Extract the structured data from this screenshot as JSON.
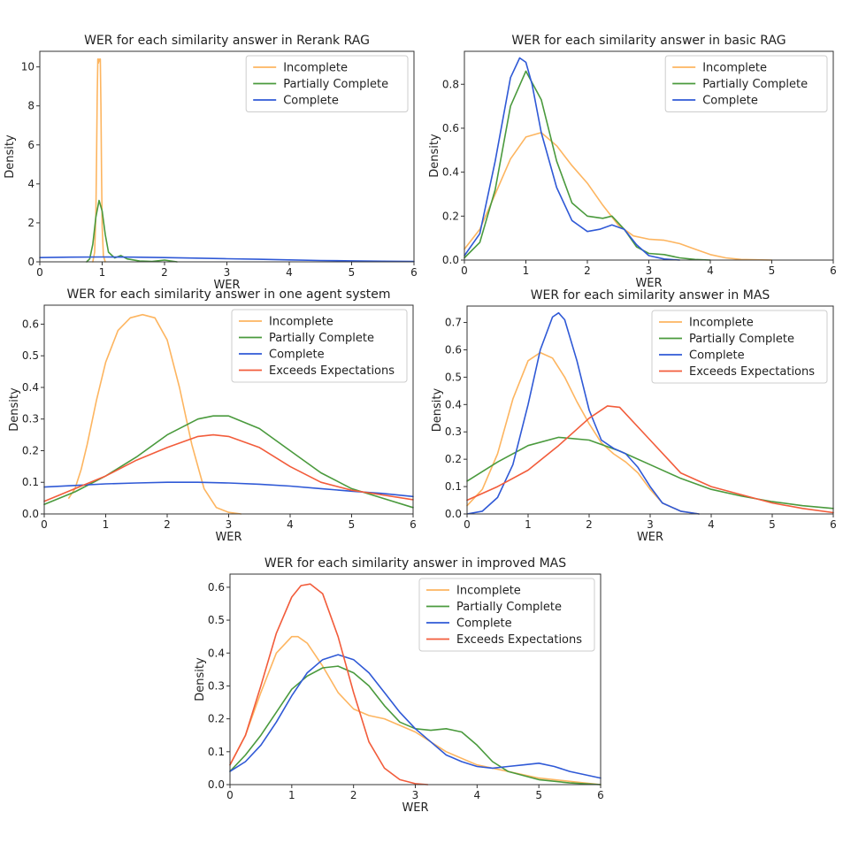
{
  "colors": {
    "Incomplete": "#fdb560",
    "Partially Complete": "#4a9a3d",
    "Complete": "#2f59d6",
    "Exceeds Expectations": "#f25c3b"
  },
  "chart_data": [
    {
      "type": "line",
      "title": "WER for each similarity answer in Rerank RAG",
      "xlabel": "WER",
      "ylabel": "Density",
      "xlim": [
        0,
        6
      ],
      "ylim": [
        0,
        10.8
      ],
      "xticks": [
        0,
        1,
        2,
        3,
        4,
        5,
        6
      ],
      "yticks": [
        0,
        2,
        4,
        6,
        8,
        10
      ],
      "legend": "top-right",
      "series": [
        {
          "name": "Incomplete",
          "x": [
            0.85,
            0.88,
            0.9,
            0.91,
            0.92,
            0.93,
            0.94,
            0.95,
            0.96,
            0.97,
            0.98,
            0.99,
            1.0,
            1.02,
            1.05
          ],
          "y": [
            0,
            0.5,
            2.5,
            5.5,
            8.5,
            10.4,
            10.2,
            10.4,
            10.3,
            10.4,
            8.0,
            4.5,
            1.8,
            0.3,
            0
          ]
        },
        {
          "name": "Partially Complete",
          "x": [
            0.75,
            0.8,
            0.85,
            0.9,
            0.95,
            1.0,
            1.05,
            1.1,
            1.2,
            1.3,
            1.4,
            1.6,
            1.8,
            2.0,
            2.2
          ],
          "y": [
            0,
            0.15,
            0.9,
            2.3,
            3.15,
            2.6,
            1.4,
            0.5,
            0.2,
            0.32,
            0.15,
            0.04,
            0.02,
            0.09,
            0
          ]
        },
        {
          "name": "Complete",
          "x": [
            0,
            0.5,
            1,
            1.5,
            2,
            2.5,
            3,
            3.5,
            4,
            4.5,
            5,
            5.5,
            6
          ],
          "y": [
            0.22,
            0.24,
            0.25,
            0.24,
            0.22,
            0.19,
            0.16,
            0.13,
            0.1,
            0.07,
            0.05,
            0.03,
            0.02
          ]
        }
      ]
    },
    {
      "type": "line",
      "title": "WER for each similarity answer in basic RAG",
      "xlabel": "WER",
      "ylabel": "Density",
      "xlim": [
        0,
        6
      ],
      "ylim": [
        0,
        0.95
      ],
      "xticks": [
        0,
        1,
        2,
        3,
        4,
        5,
        6
      ],
      "yticks": [
        0.0,
        0.2,
        0.4,
        0.6,
        0.8
      ],
      "legend": "top-right",
      "series": [
        {
          "name": "Incomplete",
          "x": [
            0,
            0.25,
            0.5,
            0.75,
            1.0,
            1.25,
            1.5,
            1.75,
            2.0,
            2.25,
            2.5,
            2.75,
            3.0,
            3.25,
            3.5,
            3.75,
            4.0,
            4.25,
            4.5,
            5.0
          ],
          "y": [
            0.05,
            0.14,
            0.3,
            0.46,
            0.56,
            0.58,
            0.52,
            0.43,
            0.35,
            0.25,
            0.16,
            0.11,
            0.095,
            0.09,
            0.075,
            0.05,
            0.025,
            0.01,
            0.003,
            0
          ]
        },
        {
          "name": "Partially Complete",
          "x": [
            0,
            0.25,
            0.5,
            0.75,
            1.0,
            1.25,
            1.5,
            1.75,
            2.0,
            2.25,
            2.4,
            2.6,
            2.8,
            3.0,
            3.25,
            3.5,
            3.75,
            4.0
          ],
          "y": [
            0.01,
            0.08,
            0.32,
            0.7,
            0.86,
            0.73,
            0.45,
            0.26,
            0.2,
            0.19,
            0.2,
            0.14,
            0.06,
            0.03,
            0.025,
            0.01,
            0.003,
            0
          ]
        },
        {
          "name": "Complete",
          "x": [
            0,
            0.25,
            0.5,
            0.75,
            0.9,
            1.0,
            1.1,
            1.25,
            1.5,
            1.75,
            2.0,
            2.2,
            2.4,
            2.6,
            2.8,
            3.0,
            3.25,
            3.5
          ],
          "y": [
            0.02,
            0.12,
            0.45,
            0.83,
            0.92,
            0.9,
            0.8,
            0.58,
            0.33,
            0.18,
            0.13,
            0.14,
            0.16,
            0.14,
            0.07,
            0.02,
            0.005,
            0
          ]
        }
      ]
    },
    {
      "type": "line",
      "title": "WER for each similarity answer in one agent system",
      "xlabel": "WER",
      "ylabel": "Density",
      "xlim": [
        0,
        6
      ],
      "ylim": [
        0,
        0.66
      ],
      "xticks": [
        0,
        1,
        2,
        3,
        4,
        5,
        6
      ],
      "yticks": [
        0.0,
        0.1,
        0.2,
        0.3,
        0.4,
        0.5,
        0.6
      ],
      "legend": "top-right",
      "series": [
        {
          "name": "Incomplete",
          "x": [
            0.4,
            0.5,
            0.6,
            0.7,
            0.85,
            1.0,
            1.2,
            1.4,
            1.6,
            1.8,
            2.0,
            2.2,
            2.4,
            2.6,
            2.8,
            3.0,
            3.2
          ],
          "y": [
            0.05,
            0.08,
            0.14,
            0.22,
            0.36,
            0.48,
            0.58,
            0.62,
            0.63,
            0.62,
            0.55,
            0.4,
            0.22,
            0.08,
            0.02,
            0.005,
            0
          ]
        },
        {
          "name": "Partially Complete",
          "x": [
            0,
            0.5,
            1.0,
            1.5,
            2.0,
            2.5,
            2.75,
            3.0,
            3.5,
            4.0,
            4.5,
            5.0,
            5.5,
            6.0
          ],
          "y": [
            0.03,
            0.07,
            0.12,
            0.18,
            0.25,
            0.3,
            0.31,
            0.31,
            0.27,
            0.2,
            0.13,
            0.08,
            0.05,
            0.02
          ]
        },
        {
          "name": "Complete",
          "x": [
            0,
            0.5,
            1.0,
            1.5,
            2.0,
            2.5,
            3.0,
            3.5,
            4.0,
            4.5,
            5.0,
            5.5,
            6.0
          ],
          "y": [
            0.085,
            0.09,
            0.095,
            0.098,
            0.1,
            0.1,
            0.098,
            0.094,
            0.088,
            0.08,
            0.072,
            0.065,
            0.055
          ]
        },
        {
          "name": "Exceeds Expectations",
          "x": [
            0,
            0.5,
            1.0,
            1.5,
            2.0,
            2.5,
            2.75,
            3.0,
            3.5,
            4.0,
            4.5,
            5.0,
            5.5,
            6.0
          ],
          "y": [
            0.04,
            0.08,
            0.12,
            0.17,
            0.21,
            0.245,
            0.25,
            0.245,
            0.21,
            0.15,
            0.1,
            0.075,
            0.06,
            0.045
          ]
        }
      ]
    },
    {
      "type": "line",
      "title": "WER for each similarity answer in MAS",
      "xlabel": "WER",
      "ylabel": "Density",
      "xlim": [
        0,
        6
      ],
      "ylim": [
        0,
        0.76
      ],
      "xticks": [
        0,
        1,
        2,
        3,
        4,
        5,
        6
      ],
      "yticks": [
        0.0,
        0.1,
        0.2,
        0.3,
        0.4,
        0.5,
        0.6,
        0.7
      ],
      "legend": "top-right",
      "series": [
        {
          "name": "Incomplete",
          "x": [
            0,
            0.25,
            0.5,
            0.75,
            1.0,
            1.2,
            1.4,
            1.6,
            1.8,
            2.0,
            2.2,
            2.4,
            2.6,
            2.8,
            3.0,
            3.2,
            3.5,
            3.8
          ],
          "y": [
            0.03,
            0.09,
            0.22,
            0.42,
            0.56,
            0.59,
            0.57,
            0.5,
            0.41,
            0.33,
            0.26,
            0.22,
            0.19,
            0.15,
            0.09,
            0.04,
            0.01,
            0
          ]
        },
        {
          "name": "Partially Complete",
          "x": [
            0,
            0.5,
            1.0,
            1.5,
            2.0,
            2.5,
            3.0,
            3.5,
            4.0,
            4.5,
            5.0,
            5.5,
            6.0
          ],
          "y": [
            0.12,
            0.19,
            0.25,
            0.28,
            0.27,
            0.23,
            0.18,
            0.13,
            0.09,
            0.065,
            0.045,
            0.03,
            0.02
          ]
        },
        {
          "name": "Complete",
          "x": [
            0,
            0.25,
            0.5,
            0.75,
            1.0,
            1.2,
            1.4,
            1.5,
            1.6,
            1.8,
            2.0,
            2.2,
            2.4,
            2.6,
            2.8,
            3.0,
            3.2,
            3.5,
            3.8
          ],
          "y": [
            0,
            0.01,
            0.06,
            0.18,
            0.4,
            0.6,
            0.72,
            0.735,
            0.71,
            0.56,
            0.38,
            0.27,
            0.24,
            0.22,
            0.17,
            0.1,
            0.04,
            0.01,
            0
          ]
        },
        {
          "name": "Exceeds Expectations",
          "x": [
            0,
            0.5,
            1.0,
            1.5,
            2.0,
            2.3,
            2.5,
            3.0,
            3.5,
            4.0,
            4.5,
            5.0,
            5.5,
            6.0
          ],
          "y": [
            0.05,
            0.1,
            0.16,
            0.25,
            0.35,
            0.395,
            0.39,
            0.27,
            0.15,
            0.1,
            0.07,
            0.04,
            0.02,
            0.005
          ]
        }
      ]
    },
    {
      "type": "line",
      "title": "WER for each similarity answer in improved MAS",
      "xlabel": "WER",
      "ylabel": "Density",
      "xlim": [
        0,
        6
      ],
      "ylim": [
        0,
        0.64
      ],
      "xticks": [
        0,
        1,
        2,
        3,
        4,
        5,
        6
      ],
      "yticks": [
        0.0,
        0.1,
        0.2,
        0.3,
        0.4,
        0.5,
        0.6
      ],
      "legend": "top-right",
      "series": [
        {
          "name": "Incomplete",
          "x": [
            0,
            0.25,
            0.5,
            0.75,
            1.0,
            1.1,
            1.25,
            1.5,
            1.75,
            2.0,
            2.25,
            2.5,
            3.0,
            3.5,
            4.0,
            4.5,
            5.0,
            5.5,
            6.0
          ],
          "y": [
            0.06,
            0.15,
            0.28,
            0.4,
            0.45,
            0.45,
            0.43,
            0.36,
            0.28,
            0.23,
            0.21,
            0.2,
            0.16,
            0.1,
            0.06,
            0.04,
            0.02,
            0.01,
            0
          ]
        },
        {
          "name": "Partially Complete",
          "x": [
            0,
            0.25,
            0.5,
            0.75,
            1.0,
            1.25,
            1.5,
            1.75,
            2.0,
            2.25,
            2.5,
            2.75,
            3.0,
            3.25,
            3.5,
            3.75,
            4.0,
            4.25,
            4.5,
            5.0,
            5.5,
            6.0
          ],
          "y": [
            0.04,
            0.09,
            0.15,
            0.22,
            0.29,
            0.33,
            0.355,
            0.36,
            0.34,
            0.3,
            0.24,
            0.19,
            0.17,
            0.165,
            0.17,
            0.16,
            0.12,
            0.07,
            0.04,
            0.015,
            0.005,
            0
          ]
        },
        {
          "name": "Complete",
          "x": [
            0,
            0.25,
            0.5,
            0.75,
            1.0,
            1.25,
            1.5,
            1.75,
            2.0,
            2.25,
            2.5,
            2.75,
            3.0,
            3.25,
            3.5,
            3.75,
            4.0,
            4.25,
            4.5,
            4.75,
            5.0,
            5.25,
            5.5,
            6.0
          ],
          "y": [
            0.04,
            0.07,
            0.12,
            0.19,
            0.27,
            0.34,
            0.38,
            0.395,
            0.38,
            0.34,
            0.28,
            0.22,
            0.17,
            0.13,
            0.09,
            0.07,
            0.055,
            0.05,
            0.055,
            0.06,
            0.065,
            0.055,
            0.04,
            0.02
          ]
        },
        {
          "name": "Exceeds Expectations",
          "x": [
            0,
            0.25,
            0.5,
            0.75,
            1.0,
            1.15,
            1.3,
            1.5,
            1.75,
            2.0,
            2.25,
            2.5,
            2.75,
            3.0,
            3.2
          ],
          "y": [
            0.06,
            0.15,
            0.3,
            0.46,
            0.57,
            0.605,
            0.61,
            0.58,
            0.45,
            0.28,
            0.13,
            0.05,
            0.015,
            0.003,
            0
          ]
        }
      ]
    }
  ]
}
